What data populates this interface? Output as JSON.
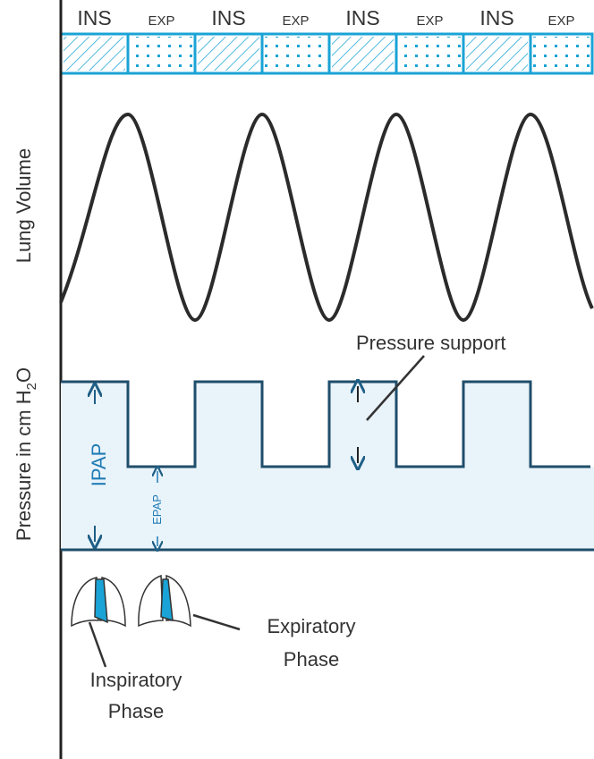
{
  "phases": [
    "INS",
    "EXP",
    "INS",
    "EXP",
    "INS",
    "EXP",
    "INS",
    "EXP"
  ],
  "axis_labels": {
    "lung_volume": "Lung Volume",
    "pressure": {
      "prefix": "Pressure in cm H",
      "subscript": "2",
      "suffix": "O"
    }
  },
  "annotations": {
    "pressure_support": "Pressure support",
    "ipap": "IPAP",
    "epap": "EPAP",
    "expiratory_phase": [
      "Expiratory",
      "Phase"
    ],
    "inspiratory_phase": [
      "Inspiratory",
      "Phase"
    ]
  }
}
